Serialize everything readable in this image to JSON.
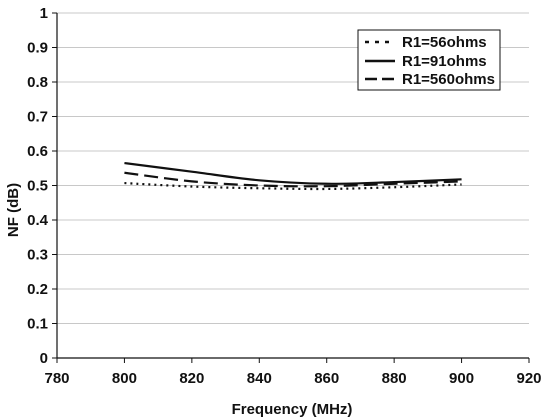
{
  "chart_data": {
    "type": "line",
    "xlabel": "Frequency (MHz)",
    "ylabel": "NF (dB)",
    "xlim": [
      780,
      920
    ],
    "ylim": [
      0,
      1
    ],
    "xticks": [
      "780",
      "800",
      "820",
      "840",
      "860",
      "880",
      "900",
      "920"
    ],
    "yticks": [
      "0",
      "0.1",
      "0.2",
      "0.3",
      "0.4",
      "0.5",
      "0.6",
      "0.7",
      "0.8",
      "0.9",
      "1"
    ],
    "grid": "horizontal",
    "legend_position": "top-right",
    "series": [
      {
        "name": "R1=56ohms",
        "style": "dotted",
        "x": [
          800,
          820,
          840,
          860,
          880,
          900
        ],
        "values": [
          0.507,
          0.497,
          0.492,
          0.49,
          0.495,
          0.503
        ]
      },
      {
        "name": "R1=91ohms",
        "style": "solid",
        "x": [
          800,
          820,
          840,
          860,
          880,
          900
        ],
        "values": [
          0.565,
          0.54,
          0.515,
          0.505,
          0.51,
          0.518
        ]
      },
      {
        "name": "R1=560ohms",
        "style": "dashed",
        "x": [
          800,
          820,
          840,
          860,
          880,
          900
        ],
        "values": [
          0.537,
          0.512,
          0.5,
          0.498,
          0.505,
          0.512
        ]
      }
    ]
  }
}
